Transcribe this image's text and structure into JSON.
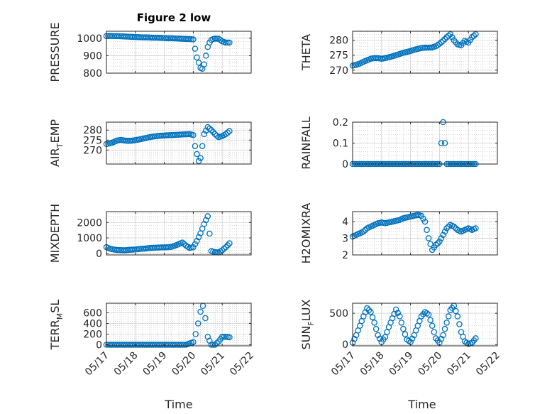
{
  "figure": {
    "title": "Figure 2 low",
    "xlabel": "Time"
  },
  "colors": {
    "marker": "#0072BD",
    "axes": "#262626",
    "grid": "#b0b0b0",
    "background": "#ffffff"
  },
  "chart_data": [
    {
      "type": "scatter",
      "ylabel": "PRESSURE",
      "ylim": [
        800,
        1040
      ],
      "yticks": [
        800,
        900,
        1000
      ],
      "ytick_labels": [
        "800",
        "900",
        "1000"
      ],
      "xlim": [
        "05/17",
        "05/22"
      ],
      "grid": true,
      "x": [
        "05/17 00:00",
        "05/17 03:00",
        "05/17 06:00",
        "05/17 09:00",
        "05/17 12:00",
        "05/17 15:00",
        "05/17 18:00",
        "05/17 21:00",
        "05/18 00:00",
        "05/18 03:00",
        "05/18 06:00",
        "05/18 09:00",
        "05/18 12:00",
        "05/18 15:00",
        "05/18 18:00",
        "05/18 21:00",
        "05/19 00:00",
        "05/19 03:00",
        "05/19 06:00",
        "05/19 09:00",
        "05/19 12:00",
        "05/19 15:00",
        "05/19 18:00",
        "05/19 21:00",
        "05/20 00:00",
        "05/20 01:30",
        "05/20 03:00",
        "05/20 04:30",
        "05/20 06:00",
        "05/20 07:30",
        "05/20 09:00",
        "05/20 10:30",
        "05/20 12:00",
        "05/20 13:30",
        "05/20 15:00",
        "05/20 16:30",
        "05/20 18:00",
        "05/20 21:00",
        "05/21 00:00",
        "05/21 03:00",
        "05/21 06:00"
      ],
      "y": [
        1012,
        1013,
        1012,
        1012,
        1011,
        1010,
        1009,
        1008,
        1007,
        1006,
        1005,
        1005,
        1004,
        1003,
        1003,
        1002,
        1001,
        1000,
        1000,
        999,
        998,
        997,
        996,
        995,
        993,
        940,
        890,
        860,
        830,
        825,
        850,
        900,
        950,
        975,
        990,
        995,
        998,
        997,
        982,
        975,
        975
      ]
    },
    {
      "type": "scatter",
      "ylabel": "THETA",
      "ylim": [
        269,
        283
      ],
      "yticks": [
        270,
        275,
        280
      ],
      "ytick_labels": [
        "270",
        "275",
        "280"
      ],
      "xlim": [
        "05/17",
        "05/22"
      ],
      "grid": true,
      "x": [
        "05/17 00:00",
        "05/17 03:00",
        "05/17 06:00",
        "05/17 09:00",
        "05/17 12:00",
        "05/17 15:00",
        "05/17 18:00",
        "05/17 21:00",
        "05/18 00:00",
        "05/18 03:00",
        "05/18 06:00",
        "05/18 09:00",
        "05/18 12:00",
        "05/18 15:00",
        "05/18 18:00",
        "05/18 21:00",
        "05/19 00:00",
        "05/19 03:00",
        "05/19 06:00",
        "05/19 09:00",
        "05/19 12:00",
        "05/19 15:00",
        "05/19 18:00",
        "05/19 21:00",
        "05/20 00:00",
        "05/20 03:00",
        "05/20 06:00",
        "05/20 09:00",
        "05/20 12:00",
        "05/20 15:00",
        "05/20 18:00",
        "05/20 21:00",
        "05/21 00:00",
        "05/21 03:00",
        "05/21 06:00"
      ],
      "y": [
        271.5,
        271.8,
        272.2,
        272.8,
        273.3,
        273.8,
        274.0,
        274.0,
        273.8,
        274.0,
        274.3,
        274.6,
        275.0,
        275.4,
        275.8,
        276.1,
        276.4,
        276.8,
        277.1,
        277.4,
        277.5,
        277.5,
        277.6,
        278.0,
        278.8,
        279.8,
        281.0,
        282.0,
        280.0,
        278.6,
        278.3,
        279.8,
        279.2,
        281.0,
        282.0
      ]
    },
    {
      "type": "scatter",
      "ylabel": "AIR",
      "ylabel_sub": "T",
      "ylabel_tail": "EMP",
      "ylim": [
        263,
        284
      ],
      "yticks": [
        270,
        275,
        280
      ],
      "ytick_labels": [
        "270",
        "275",
        "280"
      ],
      "xlim": [
        "05/17",
        "05/22"
      ],
      "grid": true,
      "x": [
        "05/17 00:00",
        "05/17 03:00",
        "05/17 06:00",
        "05/17 09:00",
        "05/17 12:00",
        "05/17 15:00",
        "05/17 18:00",
        "05/17 21:00",
        "05/18 00:00",
        "05/18 03:00",
        "05/18 06:00",
        "05/18 09:00",
        "05/18 12:00",
        "05/18 15:00",
        "05/18 18:00",
        "05/18 21:00",
        "05/19 00:00",
        "05/19 03:00",
        "05/19 06:00",
        "05/19 09:00",
        "05/19 12:00",
        "05/19 15:00",
        "05/19 18:00",
        "05/19 21:00",
        "05/20 00:00",
        "05/20 01:30",
        "05/20 03:00",
        "05/20 04:30",
        "05/20 06:00",
        "05/20 07:30",
        "05/20 09:00",
        "05/20 12:00",
        "05/20 15:00",
        "05/20 18:00",
        "05/20 21:00",
        "05/21 00:00",
        "05/21 03:00",
        "05/21 06:00"
      ],
      "y": [
        273.0,
        273.4,
        274.0,
        274.8,
        275.1,
        274.8,
        274.6,
        274.7,
        275.0,
        275.3,
        275.7,
        276.1,
        276.5,
        276.8,
        277.0,
        277.2,
        277.3,
        277.4,
        277.5,
        277.6,
        277.7,
        277.8,
        277.9,
        278.0,
        277.5,
        272.0,
        268.0,
        264.5,
        266.0,
        272.0,
        278.0,
        281.5,
        280.0,
        278.0,
        276.5,
        277.0,
        278.0,
        279.5
      ]
    },
    {
      "type": "scatter",
      "ylabel": "RAINFALL",
      "ylim": [
        0,
        0.2
      ],
      "yticks": [
        0,
        0.1,
        0.2
      ],
      "ytick_labels": [
        "0",
        "0.1",
        "0.2"
      ],
      "xlim": [
        "05/17",
        "05/22"
      ],
      "grid": true,
      "x": [
        "05/17 00:00",
        "05/17 06:00",
        "05/17 12:00",
        "05/17 18:00",
        "05/18 00:00",
        "05/18 06:00",
        "05/18 12:00",
        "05/18 18:00",
        "05/19 00:00",
        "05/19 06:00",
        "05/19 12:00",
        "05/19 18:00",
        "05/20 00:00",
        "05/20 03:00",
        "05/20 06:00",
        "05/20 12:00",
        "05/20 18:00",
        "05/21 00:00",
        "05/21 06:00"
      ],
      "y": [
        0,
        0,
        0,
        0,
        0,
        0,
        0,
        0,
        0,
        0,
        0,
        0,
        0,
        0.2,
        0,
        0,
        0,
        0,
        0
      ]
    },
    {
      "type": "scatter",
      "ylabel": "MIXDEPTH",
      "ylim": [
        -100,
        2700
      ],
      "yticks": [
        0,
        1000,
        2000
      ],
      "ytick_labels": [
        "0",
        "1000",
        "2000"
      ],
      "xlim": [
        "05/17",
        "05/22"
      ],
      "grid": true,
      "x": [
        "05/17 00:00",
        "05/17 03:00",
        "05/17 06:00",
        "05/17 09:00",
        "05/17 12:00",
        "05/17 15:00",
        "05/17 18:00",
        "05/17 21:00",
        "05/18 00:00",
        "05/18 03:00",
        "05/18 06:00",
        "05/18 09:00",
        "05/18 12:00",
        "05/18 15:00",
        "05/18 18:00",
        "05/18 21:00",
        "05/19 00:00",
        "05/19 03:00",
        "05/19 06:00",
        "05/19 09:00",
        "05/19 12:00",
        "05/19 15:00",
        "05/19 18:00",
        "05/19 21:00",
        "05/20 00:00",
        "05/20 03:00",
        "05/20 06:00",
        "05/20 09:00",
        "05/20 12:00",
        "05/20 15:00",
        "05/20 18:00",
        "05/20 21:00",
        "05/21 00:00",
        "05/21 03:00",
        "05/21 06:00"
      ],
      "y": [
        400,
        300,
        250,
        220,
        210,
        200,
        220,
        240,
        250,
        280,
        300,
        320,
        350,
        360,
        370,
        380,
        390,
        400,
        420,
        500,
        600,
        700,
        500,
        350,
        400,
        800,
        1300,
        1900,
        2400,
        150,
        80,
        60,
        200,
        400,
        650
      ]
    },
    {
      "type": "scatter",
      "ylabel": "H2OMIXRA",
      "ylim": [
        2,
        4.6
      ],
      "yticks": [
        2,
        3,
        4
      ],
      "ytick_labels": [
        "2",
        "3",
        "4"
      ],
      "xlim": [
        "05/17",
        "05/22"
      ],
      "grid": true,
      "x": [
        "05/17 00:00",
        "05/17 03:00",
        "05/17 06:00",
        "05/17 09:00",
        "05/17 12:00",
        "05/17 15:00",
        "05/17 18:00",
        "05/17 21:00",
        "05/18 00:00",
        "05/18 03:00",
        "05/18 06:00",
        "05/18 09:00",
        "05/18 12:00",
        "05/18 15:00",
        "05/18 18:00",
        "05/18 21:00",
        "05/19 00:00",
        "05/19 03:00",
        "05/19 06:00",
        "05/19 09:00",
        "05/19 12:00",
        "05/19 15:00",
        "05/19 18:00",
        "05/19 21:00",
        "05/20 00:00",
        "05/20 03:00",
        "05/20 06:00",
        "05/20 09:00",
        "05/20 12:00",
        "05/20 15:00",
        "05/20 18:00",
        "05/20 21:00",
        "05/21 00:00",
        "05/21 03:00",
        "05/21 06:00"
      ],
      "y": [
        3.1,
        3.2,
        3.3,
        3.4,
        3.6,
        3.7,
        3.8,
        3.9,
        3.95,
        3.9,
        3.95,
        4.0,
        4.05,
        4.1,
        4.2,
        4.25,
        4.3,
        4.35,
        4.4,
        4.35,
        4.0,
        3.0,
        2.3,
        2.6,
        2.8,
        3.2,
        3.6,
        3.8,
        3.7,
        3.5,
        3.4,
        3.5,
        3.6,
        3.5,
        3.6
      ]
    },
    {
      "type": "scatter",
      "ylabel": "TERR",
      "ylabel_sub": "M",
      "ylabel_tail": "SL",
      "ylim": [
        -20,
        780
      ],
      "yticks": [
        0,
        200,
        400,
        600
      ],
      "ytick_labels": [
        "0",
        "200",
        "400",
        "600"
      ],
      "xlim": [
        "05/17",
        "05/22"
      ],
      "grid": true,
      "x": [
        "05/17 00:00",
        "05/17 06:00",
        "05/17 12:00",
        "05/17 18:00",
        "05/18 00:00",
        "05/18 06:00",
        "05/18 12:00",
        "05/18 18:00",
        "05/19 00:00",
        "05/19 06:00",
        "05/19 12:00",
        "05/19 18:00",
        "05/20 00:00",
        "05/20 02:00",
        "05/20 04:00",
        "05/20 06:00",
        "05/20 08:00",
        "05/20 10:00",
        "05/20 12:00",
        "05/20 15:00",
        "05/20 18:00",
        "05/20 21:00",
        "05/21 00:00",
        "05/21 03:00",
        "05/21 06:00"
      ],
      "y": [
        0,
        0,
        0,
        0,
        0,
        0,
        0,
        0,
        0,
        0,
        0,
        0,
        50,
        200,
        400,
        620,
        730,
        500,
        150,
        0,
        0,
        60,
        150,
        150,
        140
      ]
    },
    {
      "type": "scatter",
      "ylabel": "SUN",
      "ylabel_sub": "F",
      "ylabel_tail": "LUX",
      "ylim": [
        -20,
        660
      ],
      "yticks": [
        0,
        500
      ],
      "ytick_labels": [
        "0",
        "500"
      ],
      "xlim": [
        "05/17",
        "05/22"
      ],
      "grid": true,
      "x": [
        "05/17 00:00",
        "05/17 03:00",
        "05/17 06:00",
        "05/17 09:00",
        "05/17 12:00",
        "05/17 15:00",
        "05/17 18:00",
        "05/17 21:00",
        "05/18 00:00",
        "05/18 03:00",
        "05/18 06:00",
        "05/18 09:00",
        "05/18 12:00",
        "05/18 15:00",
        "05/18 18:00",
        "05/18 21:00",
        "05/19 00:00",
        "05/19 03:00",
        "05/19 06:00",
        "05/19 09:00",
        "05/19 12:00",
        "05/19 15:00",
        "05/19 18:00",
        "05/19 21:00",
        "05/20 00:00",
        "05/20 03:00",
        "05/20 06:00",
        "05/20 09:00",
        "05/20 12:00",
        "05/20 15:00",
        "05/20 18:00",
        "05/20 21:00",
        "05/21 00:00",
        "05/21 03:00",
        "05/21 06:00"
      ],
      "y": [
        30,
        150,
        300,
        450,
        580,
        520,
        350,
        150,
        40,
        120,
        280,
        420,
        560,
        450,
        250,
        80,
        40,
        150,
        300,
        450,
        520,
        480,
        300,
        100,
        30,
        150,
        350,
        550,
        620,
        450,
        200,
        50,
        10,
        30,
        100
      ]
    }
  ],
  "x_axis": {
    "ticks": [
      "05/17 00:00",
      "05/18 00:00",
      "05/19 00:00",
      "05/20 00:00",
      "05/21 00:00",
      "05/22 00:00"
    ],
    "tick_labels": [
      "05/17",
      "05/18",
      "05/19",
      "05/20",
      "05/21",
      "05/22"
    ]
  }
}
